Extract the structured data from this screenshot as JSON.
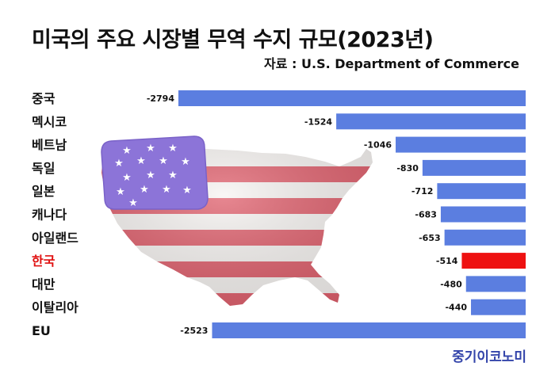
{
  "title": "미국의 주요 시장별 무역 수지 규모(2023년)",
  "source": "자료 : U.S. Department of Commerce",
  "brand": "중기이코노미",
  "colors": {
    "bar": "#5b7ee0",
    "highlight_bar": "#ee1111",
    "label": "#111111",
    "highlight_label": "#e01010"
  },
  "chart_data": {
    "type": "bar",
    "orientation": "horizontal",
    "categories": [
      "중국",
      "멕시코",
      "베트남",
      "독일",
      "일본",
      "캐나다",
      "아일랜드",
      "한국",
      "대만",
      "이탈리아",
      "EU"
    ],
    "values": [
      -2794,
      -1524,
      -1046,
      -830,
      -712,
      -683,
      -653,
      -514,
      -480,
      -440,
      -2523
    ],
    "data_labels": [
      "-2794",
      "-1524",
      "-1046",
      "-830",
      "-712",
      "-683",
      "-653",
      "-514",
      "-480",
      "-440",
      "-2523"
    ],
    "highlight": "한국",
    "xlim": [
      -2794,
      0
    ]
  }
}
